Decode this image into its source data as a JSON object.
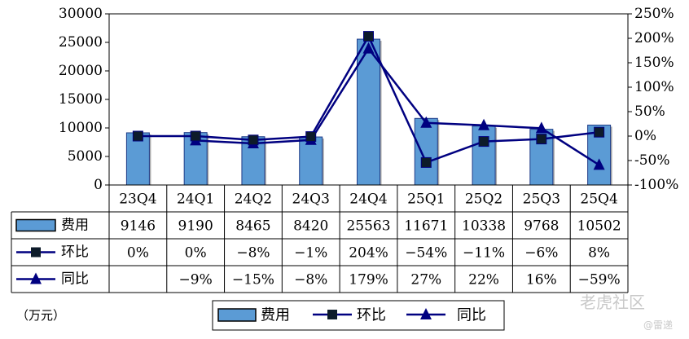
{
  "chart_data": {
    "type": "bar",
    "categories": [
      "23Q4",
      "24Q1",
      "24Q2",
      "24Q3",
      "24Q4",
      "25Q1",
      "25Q2",
      "25Q3",
      "25Q4"
    ],
    "series": [
      {
        "name": "费用",
        "type": "bar",
        "axis": "left",
        "values": [
          9146,
          9190,
          8465,
          8420,
          25563,
          11671,
          10338,
          9768,
          10502
        ],
        "labels": [
          "9146",
          "9190",
          "8465",
          "8420",
          "25563",
          "11671",
          "10338",
          "9768",
          "10502"
        ]
      },
      {
        "name": "环比",
        "type": "line",
        "axis": "right",
        "marker": "square",
        "values": [
          0,
          0,
          -8,
          -1,
          204,
          -54,
          -11,
          -6,
          8
        ],
        "labels": [
          "0%",
          "0%",
          "−8%",
          "−1%",
          "204%",
          "−54%",
          "−11%",
          "−6%",
          "8%"
        ]
      },
      {
        "name": "同比",
        "type": "line",
        "axis": "right",
        "marker": "triangle",
        "values": [
          null,
          -9,
          -15,
          -8,
          179,
          27,
          22,
          16,
          -59
        ],
        "labels": [
          "",
          "−9%",
          "−15%",
          "−8%",
          "179%",
          "27%",
          "22%",
          "16%",
          "−59%"
        ]
      }
    ],
    "ylim_left": [
      0,
      30000
    ],
    "yticks_left": [
      "30000",
      "25000",
      "20000",
      "15000",
      "10000",
      "5000",
      "0"
    ],
    "ylim_right": [
      -100,
      250
    ],
    "yticks_right": [
      "250%",
      "200%",
      "150%",
      "100%",
      "50%",
      "0%",
      "-50%",
      "-100%"
    ],
    "unit": "（万元）",
    "grid": false,
    "legend": "bottom",
    "colors": {
      "bar": "#5b9bd5",
      "bar_edge": "#1f3c88",
      "line": "#000080",
      "marker": "#0d1b2a"
    }
  },
  "watermark": {
    "text": "老虎社区",
    "sub": "@雷递"
  }
}
